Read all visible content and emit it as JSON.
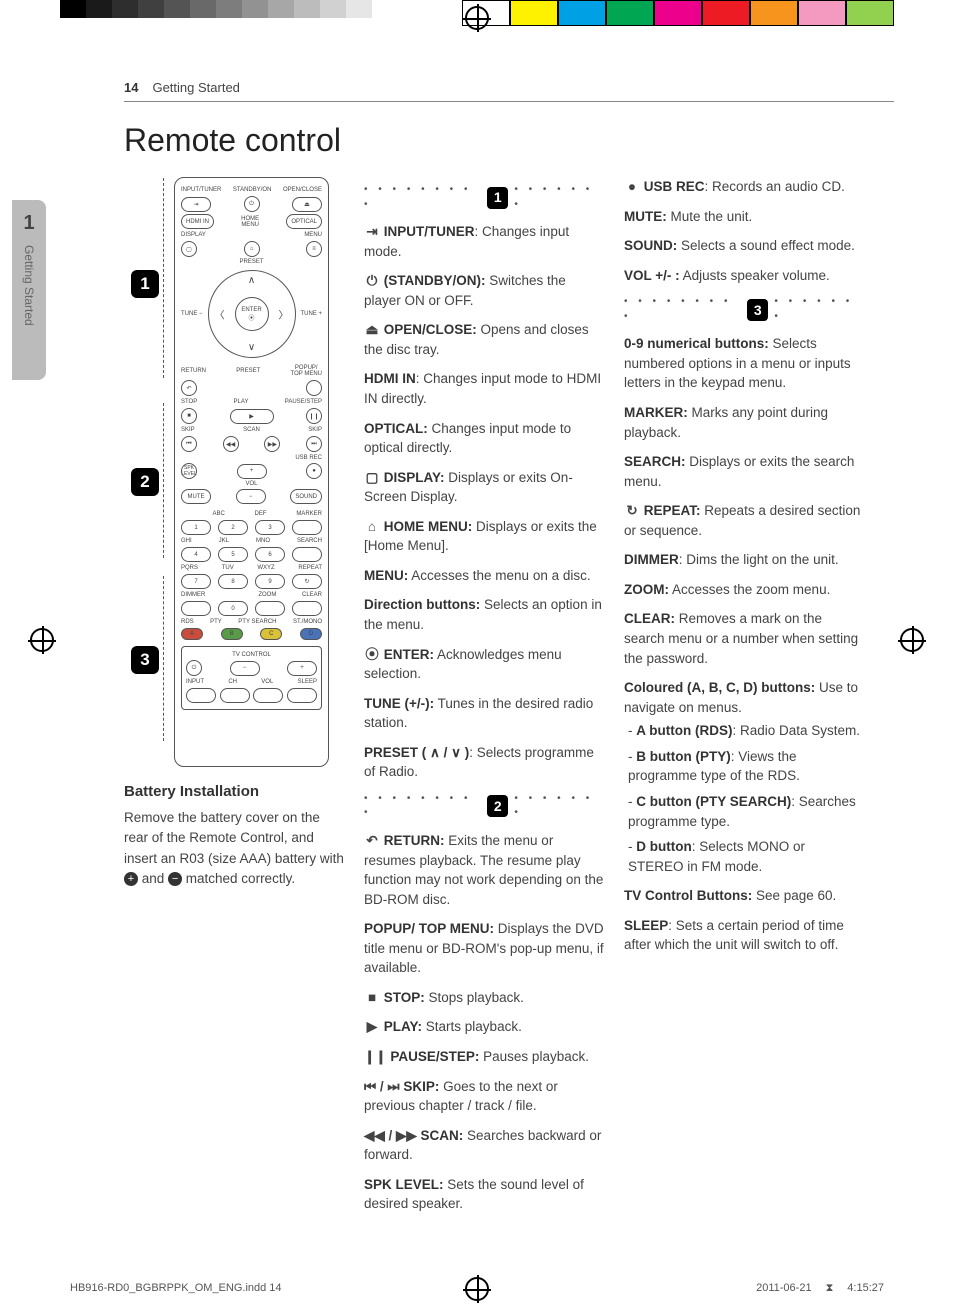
{
  "print_marks": {
    "gray_bars": [
      "#000000",
      "#1a1a1a",
      "#2e2e2e",
      "#404040",
      "#545454",
      "#696969",
      "#7d7d7d",
      "#929292",
      "#a7a7a7",
      "#bcbcbc",
      "#d1d1d1",
      "#e6e6e6",
      "#ffffff"
    ],
    "color_bars": [
      "#ffffff",
      "#fff200",
      "#00a1e4",
      "#00a651",
      "#ec008c",
      "#ed1c24",
      "#f7941e",
      "#f49ac1",
      "#92d050"
    ]
  },
  "header": {
    "page_number": "14",
    "section": "Getting Started"
  },
  "side_tab": {
    "number": "1",
    "label": "Getting Started"
  },
  "title": "Remote control",
  "battery": {
    "heading": "Battery Installation",
    "text_a": "Remove the battery cover on the rear of the Remote Control, and insert an R03 (size AAA) battery with ",
    "plus": "+",
    "text_b": " and ",
    "minus": "−",
    "text_c": " matched correctly."
  },
  "remote_labels": {
    "r1a": "INPUT/TUNER",
    "r1b": "STANDBY/ON",
    "r1c": "OPEN/CLOSE",
    "r2a": "HDMI IN",
    "r2c": "OPTICAL",
    "r2b_top": "HOME",
    "r2b_bot": "MENU",
    "r2b2": "MENU",
    "r3a": "DISPLAY",
    "preset": "PRESET",
    "tune_minus": "TUNE −",
    "tune_plus": "TUNE +",
    "enter": "ENTER",
    "return": "RETURN",
    "popup": "POPUP/\nTOP MENU",
    "stop": "STOP",
    "play": "PLAY",
    "pause": "PAUSE/STEP",
    "skip": "SKIP",
    "scan": "SCAN",
    "usb": "USB REC",
    "spk": "SPK\nLEVEL",
    "vol": "VOL",
    "mute": "MUTE",
    "sound": "SOUND",
    "abc": "ABC",
    "def": "DEF",
    "marker": "MARKER",
    "ghi": "GHI",
    "jkl": "JKL",
    "mno": "MNO",
    "search": "SEARCH",
    "pqrs": "PQRS",
    "tuv": "TUV",
    "wxyz": "WXYZ",
    "repeat": "REPEAT",
    "dimmer": "DIMMER",
    "zoom": "ZOOM",
    "clear": "CLEAR",
    "rds": "RDS",
    "pty": "PTY",
    "ptysearch": "PTY SEARCH",
    "stmono": "ST./MONO",
    "tv": "TV CONTROL",
    "input": "INPUT",
    "ch": "CH",
    "vol2": "VOL",
    "sleep": "SLEEP"
  },
  "section1": [
    {
      "icon": "⇥",
      "head": "INPUT/TUNER",
      "body": ": Changes input mode."
    },
    {
      "icon": "⏻",
      "head": "(STANDBY/ON):",
      "body": " Switches the player ON or OFF."
    },
    {
      "icon": "⏏",
      "head": "OPEN/CLOSE:",
      "body": " Opens and closes the disc tray."
    },
    {
      "icon": "",
      "head": "HDMI IN",
      "body": ": Changes input mode to HDMI IN directly."
    },
    {
      "icon": "",
      "head": "OPTICAL:",
      "body": " Changes input mode to optical directly."
    },
    {
      "icon": "▢",
      "head": "DISPLAY:",
      "body": " Displays or exits On-Screen Display."
    },
    {
      "icon": "⌂",
      "head": "HOME MENU:",
      "body": " Displays or exits the [Home Menu]."
    },
    {
      "icon": "",
      "head": "MENU:",
      "body": " Accesses the menu on a disc."
    },
    {
      "icon": "",
      "head": "Direction buttons:",
      "body": " Selects an option in the menu."
    },
    {
      "icon": "⦿",
      "head": "ENTER:",
      "body": " Acknowledges menu selection."
    },
    {
      "icon": "",
      "head": "TUNE (+/-):",
      "body": " Tunes in the desired radio station."
    },
    {
      "icon": "",
      "head": "PRESET ( ∧ / ∨ )",
      "body": ": Selects programme of Radio."
    }
  ],
  "section2": [
    {
      "icon": "↶",
      "head": "RETURN:",
      "body": " Exits the menu or resumes playback. The resume play function may not work depending on the BD-ROM disc."
    },
    {
      "icon": "",
      "head": "POPUP/ TOP MENU:",
      "body": " Displays the DVD title menu or BD-ROM's pop-up menu, if available."
    },
    {
      "icon": "■",
      "head": "STOP:",
      "body": " Stops playback."
    },
    {
      "icon": "▶",
      "head": "PLAY:",
      "body": " Starts playback."
    },
    {
      "icon": "❙❙",
      "head": "PAUSE/STEP:",
      "body": " Pauses playback."
    },
    {
      "icon": "⏮ / ⏭",
      "head": "SKIP:",
      "body": " Goes to the next or previous chapter / track / file."
    },
    {
      "icon": "◀◀ / ▶▶",
      "head": "SCAN:",
      "body": " Searches backward or forward."
    },
    {
      "icon": "",
      "head": "SPK LEVEL:",
      "body": " Sets the sound level of desired speaker."
    }
  ],
  "section2b": [
    {
      "icon": "●",
      "head": "USB REC",
      "body": ": Records an audio CD."
    },
    {
      "icon": "",
      "head": "MUTE:",
      "body": " Mute the unit."
    },
    {
      "icon": "",
      "head": "SOUND:",
      "body": " Selects a sound effect mode."
    },
    {
      "icon": "",
      "head": "VOL +/- :",
      "body": " Adjusts speaker volume."
    }
  ],
  "section3": [
    {
      "icon": "",
      "head": "0-9 numerical buttons:",
      "body": " Selects numbered options in a menu or inputs letters in the keypad menu."
    },
    {
      "icon": "",
      "head": "MARKER:",
      "body": " Marks any point during playback."
    },
    {
      "icon": "",
      "head": "SEARCH:",
      "body": " Displays or exits the search menu."
    },
    {
      "icon": "↻",
      "head": "REPEAT:",
      "body": " Repeats a desired section or sequence."
    },
    {
      "icon": "",
      "head": "DIMMER",
      "body": ": Dims the light on the unit."
    },
    {
      "icon": "",
      "head": "ZOOM:",
      "body": " Accesses the zoom menu."
    },
    {
      "icon": "",
      "head": "CLEAR:",
      "body": " Removes a mark on the search menu or a number when setting the password."
    }
  ],
  "coloured": {
    "head": "Coloured (A, B, C, D) buttons:",
    "body": " Use to navigate on menus.",
    "items": [
      {
        "h": "A button (RDS)",
        "b": ": Radio Data System."
      },
      {
        "h": "B button (PTY)",
        "b": ": Views the programme type of the RDS."
      },
      {
        "h": "C button (PTY SEARCH)",
        "b": ": Searches programme type."
      },
      {
        "h": "D button",
        "b": ": Selects MONO or STEREO in FM mode."
      }
    ]
  },
  "trailing": [
    {
      "head": "TV Control Buttons:",
      "body": " See page 60."
    },
    {
      "head": "SLEEP",
      "body": ": Sets a certain period of time after which the unit will switch to off."
    }
  ],
  "footer": {
    "file": "HB916-RD0_BGBRPPK_OM_ENG.indd   14",
    "date": "2011-06-21",
    "time": "4:15:27"
  }
}
